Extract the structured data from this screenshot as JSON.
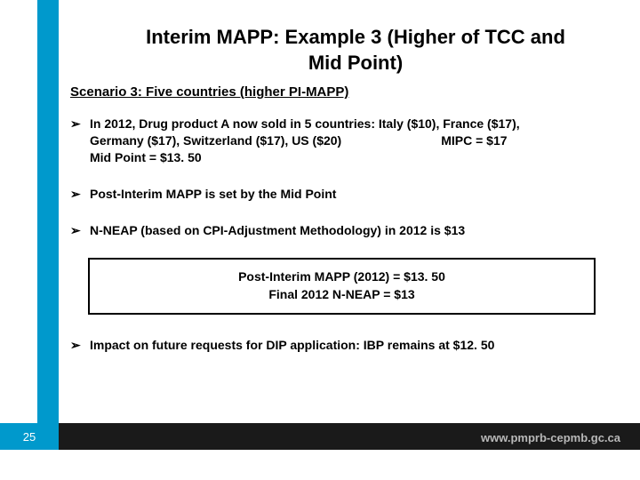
{
  "title_line1": "Interim MAPP: Example 3 (Higher of TCC and",
  "title_line2": "Mid Point)",
  "subtitle": "Scenario 3: Five countries (higher PI-MAPP)",
  "bullets": {
    "b1a": "In 2012, Drug product A now sold in 5 countries: Italy ($10), France ($17),",
    "b1b": "Germany ($17), Switzerland ($17), US ($20)        MIPC = $17",
    "b1c": "Mid Point = $13. 50",
    "b2": "Post-Interim MAPP is set by the Mid Point",
    "b3": "N-NEAP (based on CPI-Adjustment Methodology) in 2012 is $13",
    "b4": "Impact on future requests for DIP application: IBP remains at $12. 50"
  },
  "result_box": {
    "line1": "Post-Interim MAPP (2012) = $13. 50",
    "line2": "Final 2012 N-NEAP = $13"
  },
  "page_number": "25",
  "url": "www.pmprb-cepmb.gc.ca",
  "colors": {
    "accent_blue": "#0099cc",
    "footer_dark": "#1a1a1a",
    "url_gray": "#b8b8b8"
  }
}
